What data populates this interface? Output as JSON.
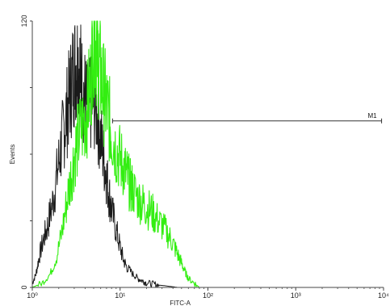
{
  "chart_data": {
    "type": "line",
    "xlabel": "FITC-A",
    "ylabel": "Events",
    "x_scale": "log",
    "xlim": [
      1,
      10000
    ],
    "ylim": [
      0,
      120
    ],
    "x_ticks": [
      {
        "value": 1,
        "label": "10⁰"
      },
      {
        "value": 10,
        "label": "10¹"
      },
      {
        "value": 100,
        "label": "10²"
      },
      {
        "value": 1000,
        "label": "10³"
      },
      {
        "value": 10000,
        "label": "10⁴"
      }
    ],
    "y_ticks": [
      {
        "value": 0,
        "label": "0"
      },
      {
        "value": 120,
        "label": "120"
      }
    ],
    "grid": false,
    "series": [
      {
        "color": "#1a1a1a",
        "x": [
          1,
          1.1,
          1.2,
          1.35,
          1.5,
          1.7,
          1.9,
          2.1,
          2.3,
          2.5,
          2.7,
          2.9,
          3.1,
          3.3,
          3.5,
          3.7,
          4.0,
          4.3,
          4.6,
          5.0,
          5.5,
          6.0,
          6.5,
          7.0,
          7.5,
          8.0,
          9.0,
          10,
          11,
          12,
          14,
          16,
          18,
          20,
          24,
          28,
          32,
          36,
          40,
          45
        ],
        "values": [
          2,
          6,
          14,
          22,
          28,
          38,
          50,
          62,
          72,
          80,
          88,
          96,
          100,
          102,
          98,
          90,
          85,
          80,
          82,
          84,
          78,
          68,
          58,
          50,
          42,
          35,
          26,
          18,
          12,
          9,
          6,
          4,
          3,
          2,
          1.5,
          1,
          0.8,
          0.5,
          0.3,
          0
        ]
      },
      {
        "color": "#33ee11",
        "x": [
          1,
          1.3,
          1.6,
          1.9,
          2.2,
          2.5,
          2.8,
          3.1,
          3.4,
          3.8,
          4.2,
          4.6,
          5.0,
          5.3,
          5.6,
          6.0,
          6.5,
          7.0,
          7.5,
          8.0,
          9.0,
          10,
          11,
          12,
          13,
          14,
          16,
          18,
          20,
          23,
          26,
          30,
          35,
          40,
          45,
          50,
          55,
          60,
          70,
          80
        ],
        "values": [
          0,
          2,
          6,
          14,
          26,
          40,
          52,
          62,
          68,
          74,
          80,
          92,
          118,
          112,
          104,
          96,
          88,
          82,
          76,
          70,
          62,
          58,
          54,
          50,
          46,
          44,
          40,
          38,
          36,
          34,
          31,
          28,
          24,
          20,
          15,
          11,
          7,
          4,
          2,
          0
        ]
      }
    ],
    "markers": [
      {
        "label": "M1",
        "y": 75,
        "x_start": 8.2,
        "x_end": 9500
      }
    ]
  }
}
